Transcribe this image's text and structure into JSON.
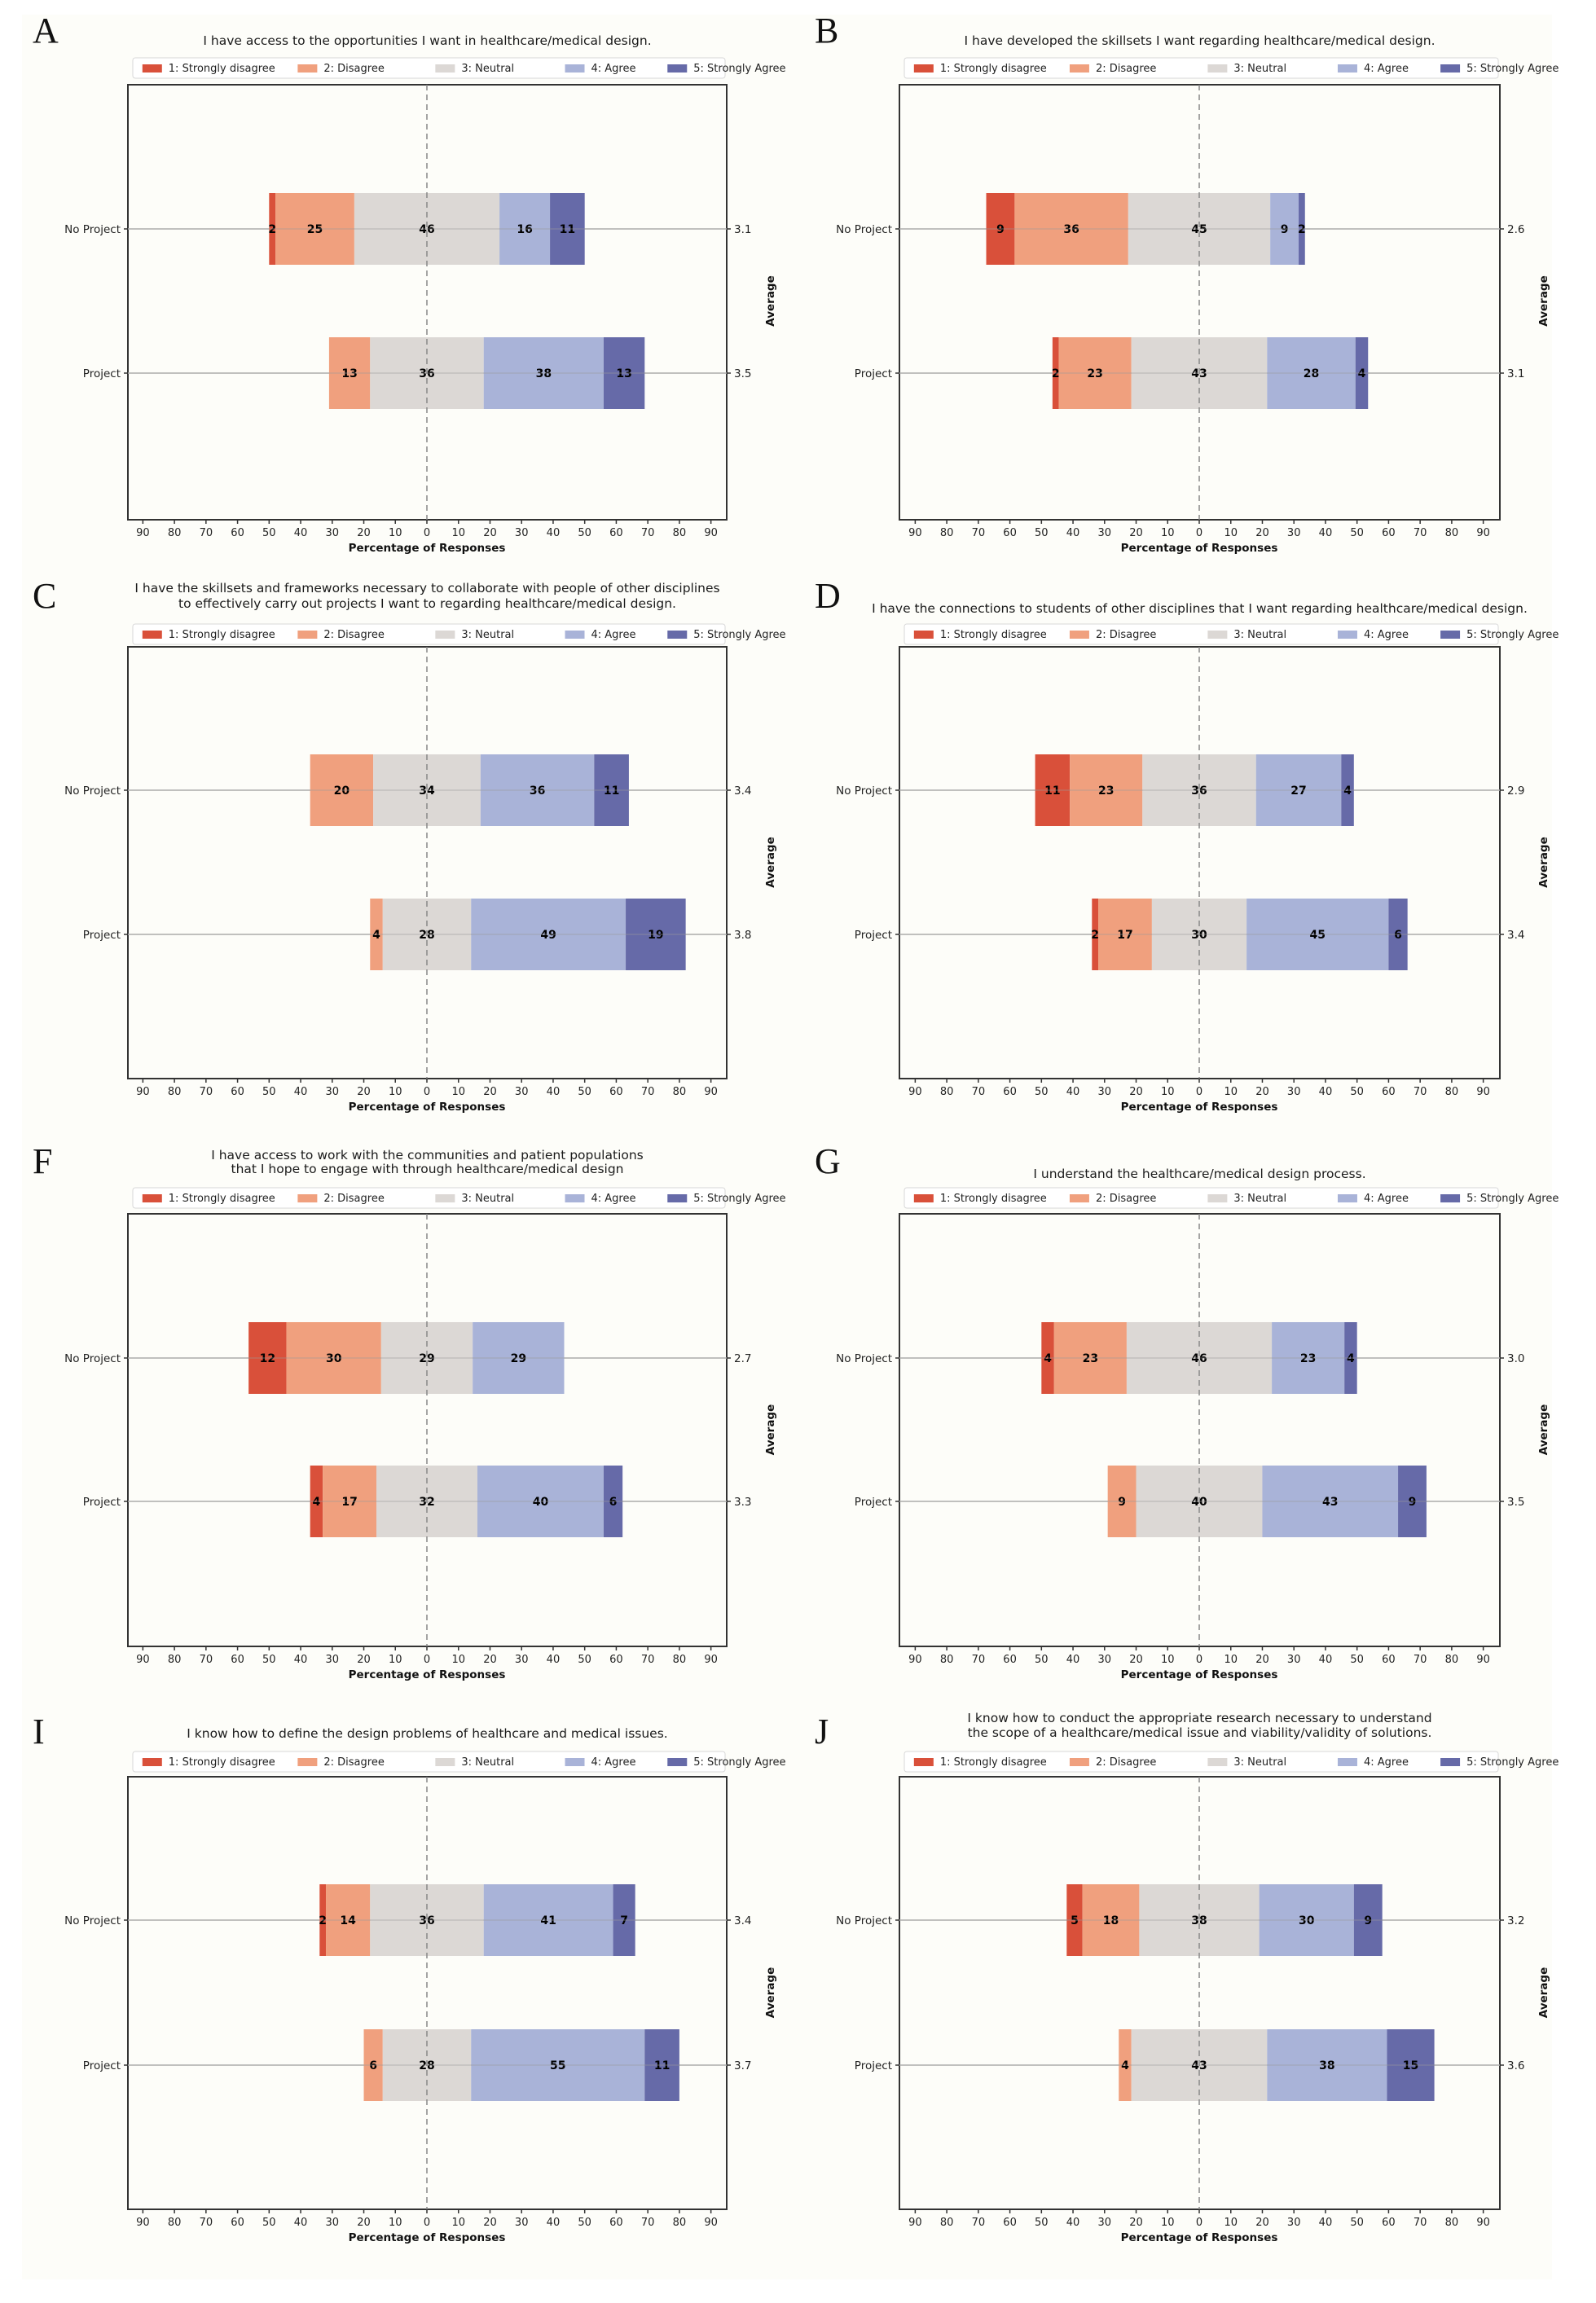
{
  "figure": {
    "legend": [
      "1: Strongly disagree",
      "2: Disagree",
      "3: Neutral",
      "4: Agree",
      "5: Strongly Agree"
    ],
    "colors": [
      "#d9503a",
      "#f0a07e",
      "#dcd8d5",
      "#a9b3d8",
      "#666aa8"
    ],
    "xlabel": "Percentage of Responses",
    "right_axis_label": "Average",
    "xticks": [
      90,
      80,
      70,
      60,
      50,
      40,
      30,
      20,
      10,
      0,
      10,
      20,
      30,
      40,
      50,
      60,
      70,
      80,
      90
    ]
  },
  "chart_data": [
    {
      "panel": "A",
      "type": "bar",
      "orientation": "diverging-stacked-horizontal",
      "title": [
        "I have access to the opportunities I want in healthcare/medical design."
      ],
      "categories": [
        "No Project",
        "Project"
      ],
      "series": [
        {
          "name": "1: Strongly disagree",
          "values": [
            2,
            0
          ]
        },
        {
          "name": "2: Disagree",
          "values": [
            25,
            13
          ]
        },
        {
          "name": "3: Neutral",
          "values": [
            46,
            36
          ]
        },
        {
          "name": "4: Agree",
          "values": [
            16,
            38
          ]
        },
        {
          "name": "5: Strongly Agree",
          "values": [
            11,
            13
          ]
        }
      ],
      "averages": [
        "3.1",
        "3.5"
      ],
      "xlabel": "Percentage of Responses",
      "ylabel_right": "Average",
      "xlim": [
        -95,
        95
      ],
      "legend": "top"
    },
    {
      "panel": "B",
      "type": "bar",
      "orientation": "diverging-stacked-horizontal",
      "title": [
        "I have developed the skillsets I want regarding healthcare/medical design."
      ],
      "categories": [
        "No Project",
        "Project"
      ],
      "series": [
        {
          "name": "1: Strongly disagree",
          "values": [
            9,
            2
          ]
        },
        {
          "name": "2: Disagree",
          "values": [
            36,
            23
          ]
        },
        {
          "name": "3: Neutral",
          "values": [
            45,
            43
          ]
        },
        {
          "name": "4: Agree",
          "values": [
            9,
            28
          ]
        },
        {
          "name": "5: Strongly Agree",
          "values": [
            2,
            4
          ]
        }
      ],
      "averages": [
        "2.6",
        "3.1"
      ],
      "xlabel": "Percentage of Responses",
      "ylabel_right": "Average",
      "xlim": [
        -95,
        95
      ],
      "legend": "top"
    },
    {
      "panel": "C",
      "type": "bar",
      "orientation": "diverging-stacked-horizontal",
      "title": [
        "I have the skillsets and frameworks necessary to collaborate with people of other disciplines",
        "to effectively carry out projects I want to regarding healthcare/medical design."
      ],
      "categories": [
        "No Project",
        "Project"
      ],
      "series": [
        {
          "name": "1: Strongly disagree",
          "values": [
            0,
            0
          ]
        },
        {
          "name": "2: Disagree",
          "values": [
            20,
            4
          ]
        },
        {
          "name": "3: Neutral",
          "values": [
            34,
            28
          ]
        },
        {
          "name": "4: Agree",
          "values": [
            36,
            49
          ]
        },
        {
          "name": "5: Strongly Agree",
          "values": [
            11,
            19
          ]
        }
      ],
      "averages": [
        "3.4",
        "3.8"
      ],
      "xlabel": "Percentage of Responses",
      "ylabel_right": "Average",
      "xlim": [
        -95,
        95
      ],
      "legend": "top"
    },
    {
      "panel": "D",
      "type": "bar",
      "orientation": "diverging-stacked-horizontal",
      "title": [
        "I have the connections to students of other disciplines that I want regarding healthcare/medical design."
      ],
      "categories": [
        "No Project",
        "Project"
      ],
      "series": [
        {
          "name": "1: Strongly disagree",
          "values": [
            11,
            2
          ]
        },
        {
          "name": "2: Disagree",
          "values": [
            23,
            17
          ]
        },
        {
          "name": "3: Neutral",
          "values": [
            36,
            30
          ]
        },
        {
          "name": "4: Agree",
          "values": [
            27,
            45
          ]
        },
        {
          "name": "5: Strongly Agree",
          "values": [
            4,
            6
          ]
        }
      ],
      "averages": [
        "2.9",
        "3.4"
      ],
      "xlabel": "Percentage of Responses",
      "ylabel_right": "Average",
      "xlim": [
        -95,
        95
      ],
      "legend": "top"
    },
    {
      "panel": "F",
      "type": "bar",
      "orientation": "diverging-stacked-horizontal",
      "title": [
        "I have access to work with the communities and patient populations",
        "that I hope to engage with through healthcare/medical design"
      ],
      "categories": [
        "No Project",
        "Project"
      ],
      "series": [
        {
          "name": "1: Strongly disagree",
          "values": [
            12,
            4
          ]
        },
        {
          "name": "2: Disagree",
          "values": [
            30,
            17
          ]
        },
        {
          "name": "3: Neutral",
          "values": [
            29,
            32
          ]
        },
        {
          "name": "4: Agree",
          "values": [
            29,
            40
          ]
        },
        {
          "name": "5: Strongly Agree",
          "values": [
            0,
            6
          ]
        }
      ],
      "averages": [
        "2.7",
        "3.3"
      ],
      "xlabel": "Percentage of Responses",
      "ylabel_right": "Average",
      "xlim": [
        -95,
        95
      ],
      "legend": "top"
    },
    {
      "panel": "G",
      "type": "bar",
      "orientation": "diverging-stacked-horizontal",
      "title": [
        "I understand the healthcare/medical design process."
      ],
      "categories": [
        "No Project",
        "Project"
      ],
      "series": [
        {
          "name": "1: Strongly disagree",
          "values": [
            4,
            0
          ]
        },
        {
          "name": "2: Disagree",
          "values": [
            23,
            9
          ]
        },
        {
          "name": "3: Neutral",
          "values": [
            46,
            40
          ]
        },
        {
          "name": "4: Agree",
          "values": [
            23,
            43
          ]
        },
        {
          "name": "5: Strongly Agree",
          "values": [
            4,
            9
          ]
        }
      ],
      "averages": [
        "3.0",
        "3.5"
      ],
      "xlabel": "Percentage of Responses",
      "ylabel_right": "Average",
      "xlim": [
        -95,
        95
      ],
      "legend": "top"
    },
    {
      "panel": "I",
      "type": "bar",
      "orientation": "diverging-stacked-horizontal",
      "title": [
        "I know how to define the design problems of healthcare and medical issues."
      ],
      "categories": [
        "No Project",
        "Project"
      ],
      "series": [
        {
          "name": "1: Strongly disagree",
          "values": [
            2,
            0
          ]
        },
        {
          "name": "2: Disagree",
          "values": [
            14,
            6
          ]
        },
        {
          "name": "3: Neutral",
          "values": [
            36,
            28
          ]
        },
        {
          "name": "4: Agree",
          "values": [
            41,
            55
          ]
        },
        {
          "name": "5: Strongly Agree",
          "values": [
            7,
            11
          ]
        }
      ],
      "averages": [
        "3.4",
        "3.7"
      ],
      "xlabel": "Percentage of Responses",
      "ylabel_right": "Average",
      "xlim": [
        -95,
        95
      ],
      "legend": "top"
    },
    {
      "panel": "J",
      "type": "bar",
      "orientation": "diverging-stacked-horizontal",
      "title": [
        "I know how to conduct the appropriate research necessary to understand",
        "the scope of a healthcare/medical issue and viability/validity of solutions."
      ],
      "categories": [
        "No Project",
        "Project"
      ],
      "series": [
        {
          "name": "1: Strongly disagree",
          "values": [
            5,
            0
          ]
        },
        {
          "name": "2: Disagree",
          "values": [
            18,
            4
          ]
        },
        {
          "name": "3: Neutral",
          "values": [
            38,
            43
          ]
        },
        {
          "name": "4: Agree",
          "values": [
            30,
            38
          ]
        },
        {
          "name": "5: Strongly Agree",
          "values": [
            9,
            15
          ]
        }
      ],
      "averages": [
        "3.2",
        "3.6"
      ],
      "xlabel": "Percentage of Responses",
      "ylabel_right": "Average",
      "xlim": [
        -95,
        95
      ],
      "legend": "top"
    }
  ]
}
